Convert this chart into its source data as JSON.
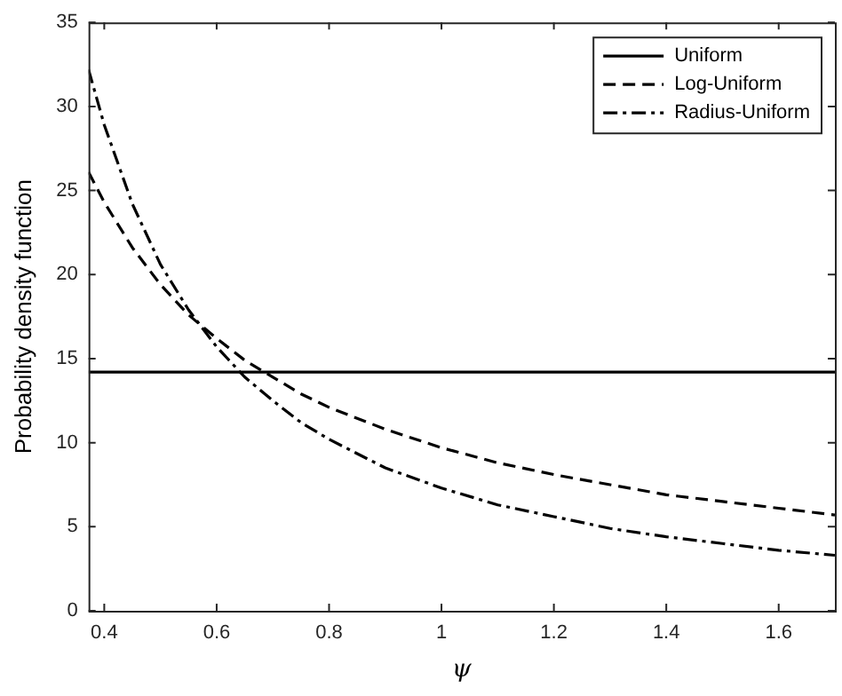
{
  "chart_data": {
    "type": "line",
    "xlabel": "ψ",
    "ylabel": "Probability density function",
    "x": [
      0.372,
      0.4,
      0.45,
      0.5,
      0.55,
      0.6,
      0.65,
      0.7,
      0.75,
      0.8,
      0.9,
      1.0,
      1.1,
      1.2,
      1.3,
      1.4,
      1.5,
      1.6,
      1.7
    ],
    "series": [
      {
        "name": "Uniform",
        "color": "#000000",
        "line_style": "solid",
        "values": [
          14.2,
          14.2,
          14.2,
          14.2,
          14.2,
          14.2,
          14.2,
          14.2,
          14.2,
          14.2,
          14.2,
          14.2,
          14.2,
          14.2,
          14.2,
          14.2,
          14.2,
          14.2,
          14.2
        ]
      },
      {
        "name": "Log-Uniform",
        "color": "#000000",
        "line_style": "dashed",
        "values": [
          26.1,
          24.3,
          21.6,
          19.4,
          17.6,
          16.2,
          14.9,
          13.9,
          12.9,
          12.1,
          10.8,
          9.7,
          8.8,
          8.1,
          7.5,
          6.9,
          6.5,
          6.1,
          5.7
        ]
      },
      {
        "name": "Radius-Uniform",
        "color": "#000000",
        "line_style": "dashdot",
        "values": [
          32.2,
          28.9,
          24.2,
          20.6,
          17.9,
          15.7,
          13.9,
          12.5,
          11.2,
          10.2,
          8.5,
          7.3,
          6.3,
          5.6,
          4.9,
          4.4,
          4.0,
          3.6,
          3.3
        ]
      }
    ],
    "xlim": [
      0.372,
      1.7
    ],
    "xticks": [
      0.4,
      0.6,
      0.8,
      1,
      1.2,
      1.4,
      1.6
    ],
    "ylim": [
      0,
      35
    ],
    "yticks": [
      0,
      5,
      10,
      15,
      20,
      25,
      30,
      35
    ],
    "grid": false,
    "legend": "top right",
    "marker": "none"
  }
}
